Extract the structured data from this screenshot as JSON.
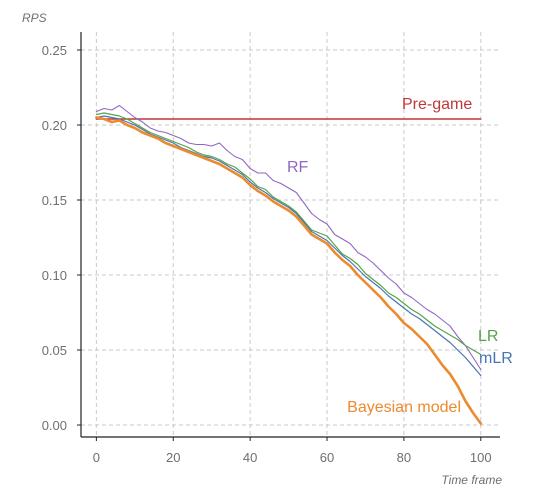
{
  "chart_data": {
    "type": "line",
    "title": "",
    "xlabel": "Time frame",
    "ylabel": "RPS",
    "xlim": [
      -4,
      105
    ],
    "ylim": [
      -0.008,
      0.262
    ],
    "x_ticks": [
      0,
      20,
      40,
      60,
      80,
      100
    ],
    "y_ticks": [
      0.0,
      0.05,
      0.1,
      0.15,
      0.2,
      0.25
    ],
    "x_tick_labels": [
      "0",
      "20",
      "40",
      "60",
      "80",
      "100"
    ],
    "y_tick_labels": [
      "0.00",
      "0.05",
      "0.10",
      "0.15",
      "0.20",
      "0.25"
    ],
    "grid": true,
    "legend": "none",
    "series": [
      {
        "name": "Pre-game",
        "color": "#c0373a",
        "width": 1.5,
        "x": [
          0,
          100
        ],
        "y": [
          0.204,
          0.204
        ]
      },
      {
        "name": "RF",
        "color": "#9267c2",
        "width": 1.1,
        "x": [
          0,
          2,
          4,
          6,
          8,
          10,
          12,
          14,
          16,
          18,
          20,
          22,
          24,
          26,
          28,
          30,
          32,
          34,
          36,
          38,
          40,
          42,
          44,
          46,
          48,
          50,
          52,
          54,
          56,
          58,
          60,
          62,
          64,
          66,
          68,
          70,
          72,
          74,
          76,
          78,
          80,
          82,
          84,
          86,
          88,
          90,
          92,
          94,
          96,
          98,
          100
        ],
        "y": [
          0.209,
          0.211,
          0.21,
          0.213,
          0.209,
          0.205,
          0.202,
          0.198,
          0.196,
          0.195,
          0.193,
          0.191,
          0.188,
          0.187,
          0.187,
          0.186,
          0.188,
          0.183,
          0.179,
          0.177,
          0.171,
          0.168,
          0.168,
          0.163,
          0.161,
          0.158,
          0.155,
          0.148,
          0.141,
          0.137,
          0.134,
          0.127,
          0.124,
          0.121,
          0.115,
          0.112,
          0.108,
          0.103,
          0.098,
          0.094,
          0.088,
          0.085,
          0.081,
          0.077,
          0.074,
          0.07,
          0.066,
          0.059,
          0.053,
          0.045,
          0.037
        ]
      },
      {
        "name": "LR",
        "color": "#55a447",
        "width": 1.2,
        "x": [
          0,
          2,
          4,
          6,
          8,
          10,
          12,
          14,
          16,
          18,
          20,
          22,
          24,
          26,
          28,
          30,
          32,
          34,
          36,
          38,
          40,
          42,
          44,
          46,
          48,
          50,
          52,
          54,
          56,
          58,
          60,
          62,
          64,
          66,
          68,
          70,
          72,
          74,
          76,
          78,
          80,
          82,
          84,
          86,
          88,
          90,
          92,
          94,
          96,
          98,
          100
        ],
        "y": [
          0.207,
          0.208,
          0.207,
          0.206,
          0.204,
          0.201,
          0.198,
          0.195,
          0.193,
          0.191,
          0.189,
          0.187,
          0.185,
          0.182,
          0.18,
          0.179,
          0.177,
          0.174,
          0.172,
          0.168,
          0.164,
          0.159,
          0.157,
          0.152,
          0.149,
          0.146,
          0.142,
          0.136,
          0.13,
          0.128,
          0.126,
          0.12,
          0.114,
          0.111,
          0.107,
          0.101,
          0.097,
          0.093,
          0.088,
          0.085,
          0.081,
          0.077,
          0.074,
          0.07,
          0.066,
          0.063,
          0.06,
          0.057,
          0.053,
          0.05,
          0.047
        ]
      },
      {
        "name": "mLR",
        "color": "#4a74b4",
        "width": 1.2,
        "x": [
          0,
          2,
          4,
          6,
          8,
          10,
          12,
          14,
          16,
          18,
          20,
          22,
          24,
          26,
          28,
          30,
          32,
          34,
          36,
          38,
          40,
          42,
          44,
          46,
          48,
          50,
          52,
          54,
          56,
          58,
          60,
          62,
          64,
          66,
          68,
          70,
          72,
          74,
          76,
          78,
          80,
          82,
          84,
          86,
          88,
          90,
          92,
          94,
          96,
          98,
          100
        ],
        "y": [
          0.205,
          0.206,
          0.205,
          0.204,
          0.202,
          0.2,
          0.197,
          0.194,
          0.192,
          0.19,
          0.188,
          0.185,
          0.183,
          0.181,
          0.179,
          0.178,
          0.176,
          0.173,
          0.17,
          0.167,
          0.162,
          0.158,
          0.155,
          0.151,
          0.148,
          0.145,
          0.141,
          0.135,
          0.129,
          0.126,
          0.123,
          0.118,
          0.113,
          0.109,
          0.104,
          0.099,
          0.095,
          0.091,
          0.086,
          0.082,
          0.078,
          0.074,
          0.071,
          0.067,
          0.063,
          0.059,
          0.055,
          0.05,
          0.045,
          0.039,
          0.033
        ]
      },
      {
        "name": "Bayesian model",
        "color": "#ec8a2e",
        "width": 2.6,
        "x": [
          0,
          2,
          4,
          6,
          8,
          10,
          12,
          14,
          16,
          18,
          20,
          22,
          24,
          26,
          28,
          30,
          32,
          34,
          36,
          38,
          40,
          42,
          44,
          46,
          48,
          50,
          52,
          54,
          56,
          58,
          60,
          62,
          64,
          66,
          68,
          70,
          72,
          74,
          76,
          78,
          80,
          82,
          84,
          86,
          88,
          90,
          92,
          94,
          96,
          98,
          100
        ],
        "y": [
          0.205,
          0.204,
          0.202,
          0.203,
          0.2,
          0.198,
          0.195,
          0.193,
          0.191,
          0.188,
          0.186,
          0.184,
          0.182,
          0.18,
          0.178,
          0.176,
          0.174,
          0.171,
          0.168,
          0.165,
          0.16,
          0.156,
          0.153,
          0.149,
          0.146,
          0.143,
          0.139,
          0.133,
          0.127,
          0.124,
          0.121,
          0.115,
          0.11,
          0.106,
          0.1,
          0.095,
          0.09,
          0.085,
          0.079,
          0.074,
          0.068,
          0.064,
          0.059,
          0.054,
          0.047,
          0.04,
          0.034,
          0.026,
          0.016,
          0.008,
          0.001
        ]
      }
    ]
  }
}
